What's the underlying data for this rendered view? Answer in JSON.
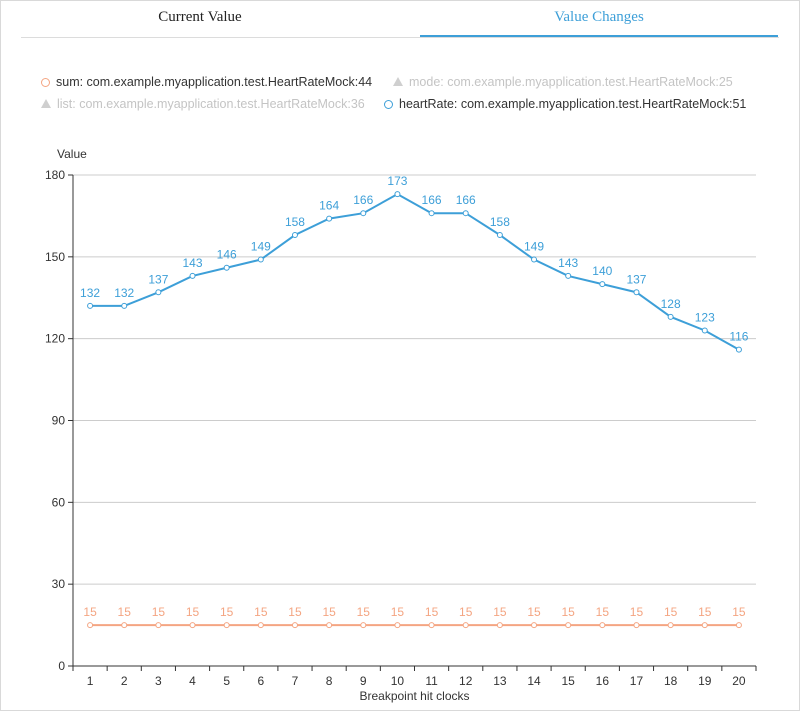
{
  "tabs": [
    {
      "label": "Current Value",
      "active": false
    },
    {
      "label": "Value Changes",
      "active": true
    }
  ],
  "legend": [
    {
      "label": "sum: com.example.myapplication.test.HeartRateMock:44",
      "icon": "circle",
      "color": "#f4a582",
      "enabled": true
    },
    {
      "label": "mode: com.example.myapplication.test.HeartRateMock:25",
      "icon": "triangle",
      "color": "#cfcfcf",
      "enabled": false
    },
    {
      "label": "list: com.example.myapplication.test.HeartRateMock:36",
      "icon": "triangle",
      "color": "#cfcfcf",
      "enabled": false
    },
    {
      "label": "heartRate: com.example.myapplication.test.HeartRateMock:51",
      "icon": "circle",
      "color": "#3d9fd8",
      "enabled": true
    }
  ],
  "chart_data": {
    "type": "line",
    "ylabel": "Value",
    "xlabel": "Breakpoint hit clocks",
    "ylim": [
      0,
      180
    ],
    "yticks": [
      0,
      30,
      60,
      90,
      120,
      150,
      180
    ],
    "categories": [
      "1",
      "2",
      "3",
      "4",
      "5",
      "6",
      "7",
      "8",
      "9",
      "10",
      "11",
      "12",
      "13",
      "14",
      "15",
      "16",
      "17",
      "18",
      "19",
      "20"
    ],
    "grid": true,
    "series": [
      {
        "name": "heartRate",
        "color": "#3d9fd8",
        "values": [
          132,
          132,
          137,
          143,
          146,
          149,
          158,
          164,
          166,
          173,
          166,
          166,
          158,
          149,
          143,
          140,
          137,
          128,
          123,
          116
        ]
      },
      {
        "name": "sum",
        "color": "#f4a582",
        "values": [
          15,
          15,
          15,
          15,
          15,
          15,
          15,
          15,
          15,
          15,
          15,
          15,
          15,
          15,
          15,
          15,
          15,
          15,
          15,
          15
        ]
      }
    ]
  }
}
